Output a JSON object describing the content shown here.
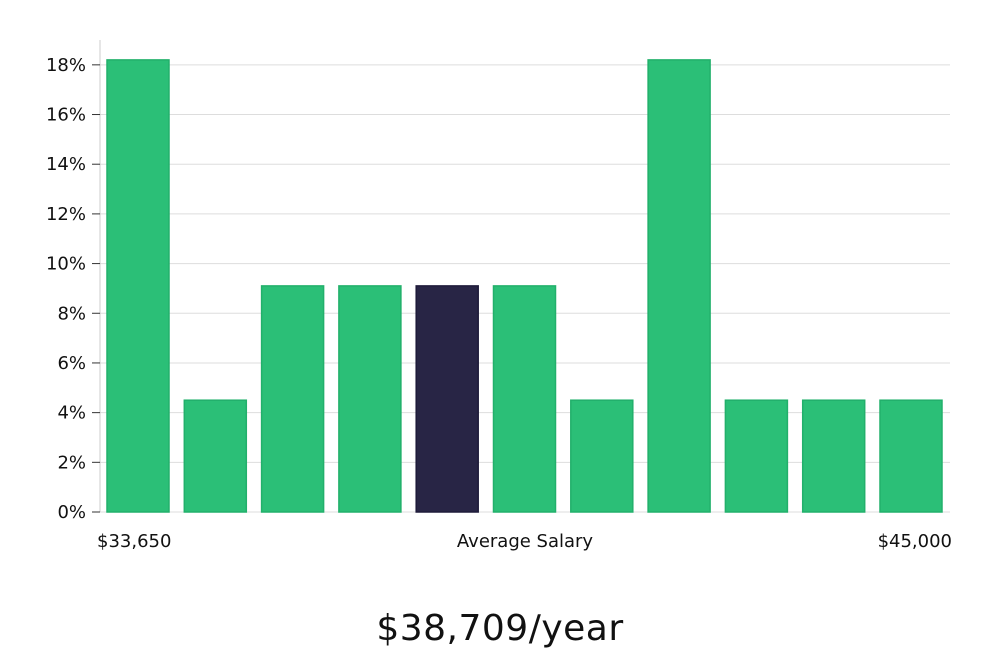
{
  "chart_data": {
    "type": "bar",
    "values": [
      18.2,
      4.5,
      9.1,
      9.1,
      9.1,
      9.1,
      4.5,
      18.2,
      4.5,
      4.5,
      4.5
    ],
    "highlight_index": 4,
    "ylim": [
      0,
      19
    ],
    "yticks": [
      0,
      2,
      4,
      6,
      8,
      10,
      12,
      14,
      16,
      18
    ],
    "ytick_suffix": "%",
    "grid": true,
    "x_left_label": "$33,650",
    "x_center_label": "Average Salary",
    "x_right_label": "$45,000",
    "colors": {
      "bar": "#2bbf77",
      "bar_border": "#22b06b",
      "highlight": "#282545",
      "grid": "#dddddd",
      "axis": "#cccccc"
    }
  },
  "summary": {
    "average_salary": "$38,709/year"
  }
}
